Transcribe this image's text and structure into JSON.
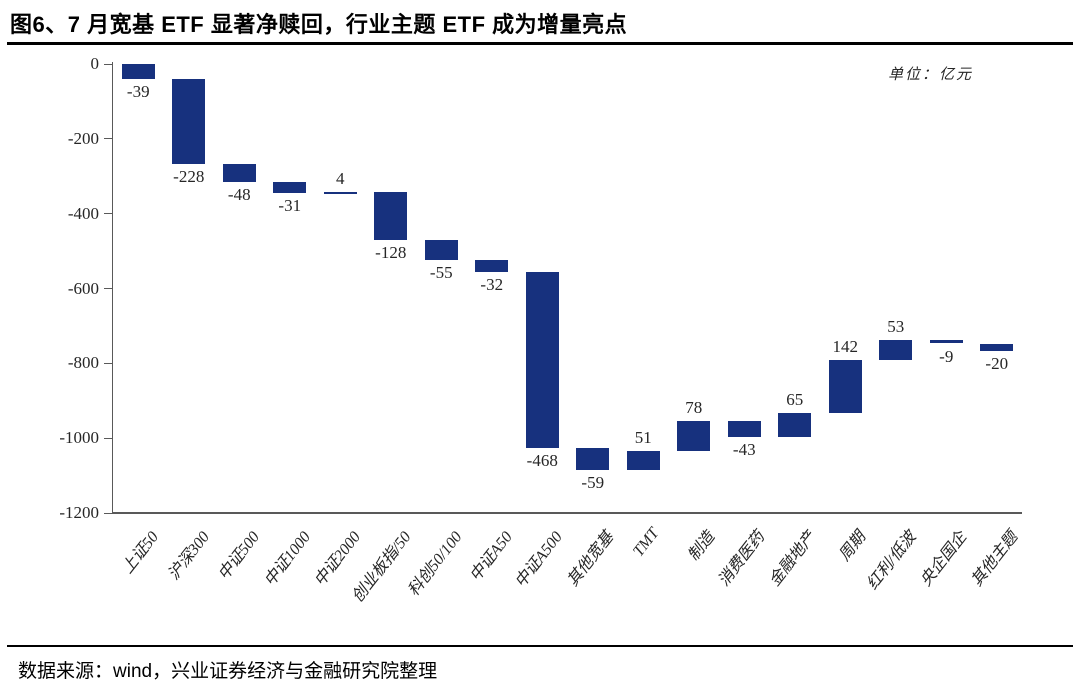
{
  "header": {
    "title": "图6、7 月宽基 ETF 显著净赎回，行业主题 ETF 成为增量亮点"
  },
  "footer": {
    "source": "数据来源：wind，兴业证券经济与金融研究院整理"
  },
  "chart_data": {
    "type": "bar",
    "subtype": "waterfall",
    "title": "图6、7 月宽基 ETF 显著净赎回，行业主题 ETF 成为增量亮点",
    "unit_label": "单位：亿元",
    "categories": [
      "上证50",
      "沪深300",
      "中证500",
      "中证1000",
      "中证2000",
      "创业板指/50",
      "科创50/100",
      "中证A50",
      "中证A500",
      "其他宽基",
      "TMT",
      "制造",
      "消费医药",
      "金融地产",
      "周期",
      "红利/低波",
      "央企国企",
      "其他主题"
    ],
    "values": [
      -39,
      -228,
      -48,
      -31,
      4,
      -128,
      -55,
      -32,
      -468,
      -59,
      51,
      78,
      -43,
      65,
      142,
      53,
      -9,
      -20
    ],
    "cumulative_ends": [
      -39,
      -267,
      -315,
      -346,
      -342,
      -470,
      -525,
      -557,
      -1025,
      -1084,
      -1033,
      -955,
      -998,
      -933,
      -791,
      -738,
      -747,
      -767
    ],
    "ylabel": "",
    "xlabel": "",
    "ylim": [
      -1200,
      0
    ],
    "yticks": [
      0,
      -200,
      -400,
      -600,
      -800,
      -1000,
      -1200
    ],
    "grid": false,
    "legend_position": "none",
    "bar_color": "#17317E",
    "axis_color": "#595959",
    "text_color": "#262626"
  }
}
